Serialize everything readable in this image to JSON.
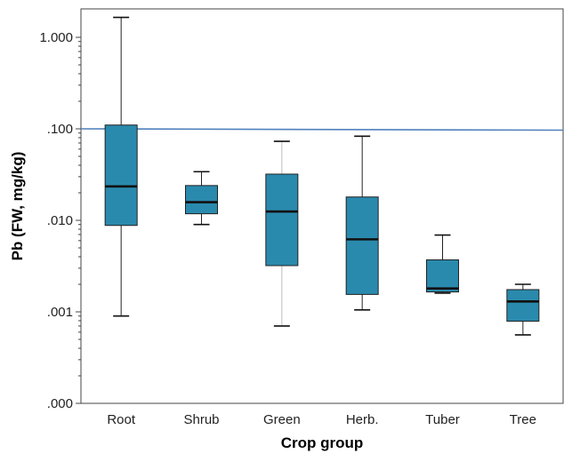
{
  "chart_data": {
    "type": "box",
    "xlabel": "Crop group",
    "ylabel": "Pb (FW, mg/kg)",
    "yscale": "log",
    "ylim": [
      0.0001,
      2
    ],
    "y_ticks": [
      {
        "value": 1,
        "label": "1.000"
      },
      {
        "value": 0.1,
        "label": ".100"
      },
      {
        "value": 0.01,
        "label": ".010"
      },
      {
        "value": 0.001,
        "label": ".001"
      },
      {
        "value": 0.0001,
        "label": ".000"
      }
    ],
    "reference_line": {
      "y": 0.1,
      "color": "#4f81bd"
    },
    "box_color": "#2a8aad",
    "categories": [
      "Root",
      "Shrub",
      "Green",
      "Herb.",
      "Tuber",
      "Tree"
    ],
    "boxes": [
      {
        "category": "Root",
        "whisker_low": 0.0009,
        "q1": 0.0088,
        "median": 0.0235,
        "q3": 0.11,
        "whisker_high": 1.65
      },
      {
        "category": "Shrub",
        "whisker_low": 0.009,
        "q1": 0.0118,
        "median": 0.0158,
        "q3": 0.024,
        "whisker_high": 0.034
      },
      {
        "category": "Green",
        "whisker_low": 0.0007,
        "q1": 0.0032,
        "median": 0.0125,
        "q3": 0.032,
        "whisker_high": 0.073
      },
      {
        "category": "Herb.",
        "whisker_low": 0.00105,
        "q1": 0.00155,
        "median": 0.0062,
        "q3": 0.018,
        "whisker_high": 0.083
      },
      {
        "category": "Tuber",
        "whisker_low": 0.0016,
        "q1": 0.00165,
        "median": 0.0018,
        "q3": 0.0037,
        "whisker_high": 0.0069
      },
      {
        "category": "Tree",
        "whisker_low": 0.00056,
        "q1": 0.00079,
        "median": 0.0013,
        "q3": 0.00175,
        "whisker_high": 0.002
      }
    ]
  }
}
